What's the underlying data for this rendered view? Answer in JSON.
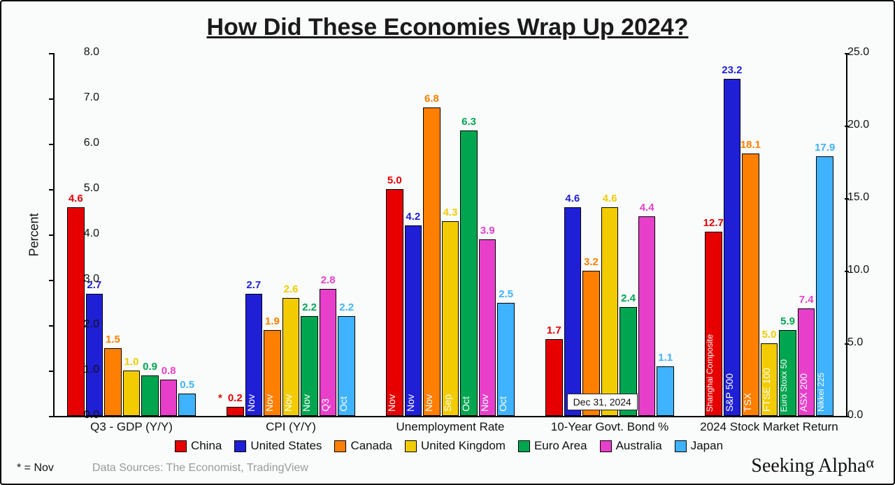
{
  "title": "How Did These Economies Wrap Up 2024?",
  "ylabel": "Percent",
  "branding": "Seeking Alpha",
  "footnote": "* = Nov",
  "sources": "Data Sources: The Economist, TradingView",
  "background_color": "#fafbfb",
  "border_color": "#000000",
  "title_fontsize": 34,
  "axis_fontsize": 16,
  "value_fontsize": 15,
  "left_axis": {
    "min": 0,
    "max": 8,
    "step": 1.0,
    "format": "0.0"
  },
  "right_axis": {
    "min": 0,
    "max": 25,
    "step": 5.0,
    "format": "0.0"
  },
  "countries": [
    {
      "key": "china",
      "name": "China",
      "color": "#e60000"
    },
    {
      "key": "us",
      "name": "United States",
      "color": "#1f1fd6"
    },
    {
      "key": "canada",
      "name": "Canada",
      "color": "#ff7f00"
    },
    {
      "key": "uk",
      "name": "United Kingdom",
      "color": "#f2cc00"
    },
    {
      "key": "euro",
      "name": "Euro Area",
      "color": "#00a64f"
    },
    {
      "key": "aus",
      "name": "Australia",
      "color": "#e83fcb"
    },
    {
      "key": "japan",
      "name": "Japan",
      "color": "#3fb3ff"
    }
  ],
  "groups": [
    {
      "label": "Q3 - GDP (Y/Y)",
      "axis": "left",
      "bars": [
        {
          "value": 4.6
        },
        {
          "value": 2.7
        },
        {
          "value": 1.5
        },
        {
          "value": 1.0
        },
        {
          "value": 0.9
        },
        {
          "value": 0.8
        },
        {
          "value": 0.5
        }
      ]
    },
    {
      "label": "CPI (Y/Y)",
      "axis": "left",
      "bars": [
        {
          "value": 0.2,
          "asterisk": true
        },
        {
          "value": 2.7,
          "in_label": "Nov"
        },
        {
          "value": 1.9,
          "in_label": "Nov"
        },
        {
          "value": 2.6,
          "in_label": "Nov"
        },
        {
          "value": 2.2,
          "in_label": "Nov"
        },
        {
          "value": 2.8,
          "in_label": "Q3"
        },
        {
          "value": 2.2,
          "in_label": "Oct"
        }
      ]
    },
    {
      "label": "Unemployment Rate",
      "axis": "left",
      "bars": [
        {
          "value": 5.0,
          "in_label": "Nov"
        },
        {
          "value": 4.2,
          "in_label": "Nov"
        },
        {
          "value": 6.8,
          "in_label": "Nov"
        },
        {
          "value": 4.3,
          "in_label": "Sep"
        },
        {
          "value": 6.3,
          "in_label": "Oct"
        },
        {
          "value": 3.9,
          "in_label": "Nov"
        },
        {
          "value": 2.5,
          "in_label": "Oct"
        }
      ]
    },
    {
      "label": "10-Year Govt. Bond %",
      "axis": "left",
      "annotation": "Dec 31, 2024",
      "bars": [
        {
          "value": 1.7
        },
        {
          "value": 4.6
        },
        {
          "value": 3.2
        },
        {
          "value": 4.6
        },
        {
          "value": 2.4
        },
        {
          "value": 4.4
        },
        {
          "value": 1.1
        }
      ]
    },
    {
      "label": "2024 Stock Market Return",
      "axis": "right",
      "bars": [
        {
          "value": 12.7,
          "in_label": "Shanghai Composite"
        },
        {
          "value": 23.2,
          "in_label": "S&P 500"
        },
        {
          "value": 18.1,
          "in_label": "TSX"
        },
        {
          "value": 5.0,
          "in_label": "FTSE 100"
        },
        {
          "value": 5.9,
          "in_label": "Euro Stoxx 50"
        },
        {
          "value": 7.4,
          "in_label": "ASX 200"
        },
        {
          "value": 17.9,
          "in_label": "Nikkei 225"
        }
      ]
    }
  ]
}
